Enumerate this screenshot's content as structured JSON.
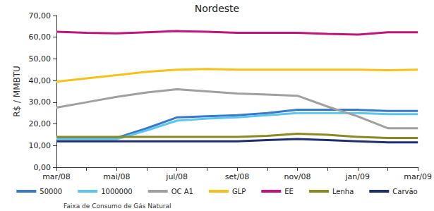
{
  "chart_data": {
    "type": "line",
    "title": "Nordeste",
    "y_label": "R$ / MMBTU",
    "categories": [
      "mar/08",
      null,
      "mai/08",
      null,
      "jul/08",
      null,
      "set/08",
      null,
      "nov/08",
      null,
      "jan/09",
      null,
      "mar/09"
    ],
    "series": [
      {
        "name": "50000",
        "color": "#3a78c8",
        "values": [
          13.5,
          13.5,
          13.5,
          18,
          23,
          23.5,
          24,
          25,
          26.5,
          26.5,
          26.5,
          26,
          26
        ]
      },
      {
        "name": "1000000",
        "color": "#5cc6ee",
        "values": [
          13,
          13,
          13,
          17,
          21.5,
          22.5,
          23,
          24,
          25,
          25,
          25,
          24.5,
          24.5
        ]
      },
      {
        "name": "OC A1",
        "color": "#a0a0a0",
        "values": [
          27.5,
          30,
          32.5,
          34.5,
          36,
          35,
          34,
          33.5,
          33,
          28,
          23.5,
          18,
          18
        ]
      },
      {
        "name": "GLP",
        "color": "#f5c21b",
        "values": [
          39.5,
          41,
          42.5,
          44,
          45,
          45.3,
          45,
          45,
          45,
          45,
          45,
          44.8,
          45
        ]
      },
      {
        "name": "EE",
        "color": "#c0157c",
        "values": [
          62.5,
          62,
          61.8,
          62.3,
          62.8,
          62.5,
          62,
          62,
          62,
          61.5,
          61.2,
          62.3,
          62.3
        ]
      },
      {
        "name": "Lenha",
        "color": "#8a8a22",
        "values": [
          14,
          14,
          14,
          14,
          14,
          14,
          14,
          14.5,
          15.5,
          15,
          14,
          13.5,
          13.5
        ]
      },
      {
        "name": "Carvão",
        "color": "#1f2f6e",
        "values": [
          12,
          12,
          12,
          12,
          12,
          12,
          12,
          12.5,
          13,
          12.5,
          12,
          11.5,
          11.5
        ]
      }
    ],
    "ylim": [
      0,
      70
    ],
    "yticks": [
      {
        "value": 0,
        "label": "0,00"
      },
      {
        "value": 10,
        "label": "10,00"
      },
      {
        "value": 20,
        "label": "20,00"
      },
      {
        "value": 30,
        "label": "30,00"
      },
      {
        "value": 40,
        "label": "40,00"
      },
      {
        "value": 50,
        "label": "50,00"
      },
      {
        "value": 60,
        "label": "60,00"
      },
      {
        "value": 70,
        "label": "70,00"
      }
    ],
    "grid": false,
    "legend": "bottom",
    "annotation": "Faixa de Consumo de Gás Natural"
  }
}
